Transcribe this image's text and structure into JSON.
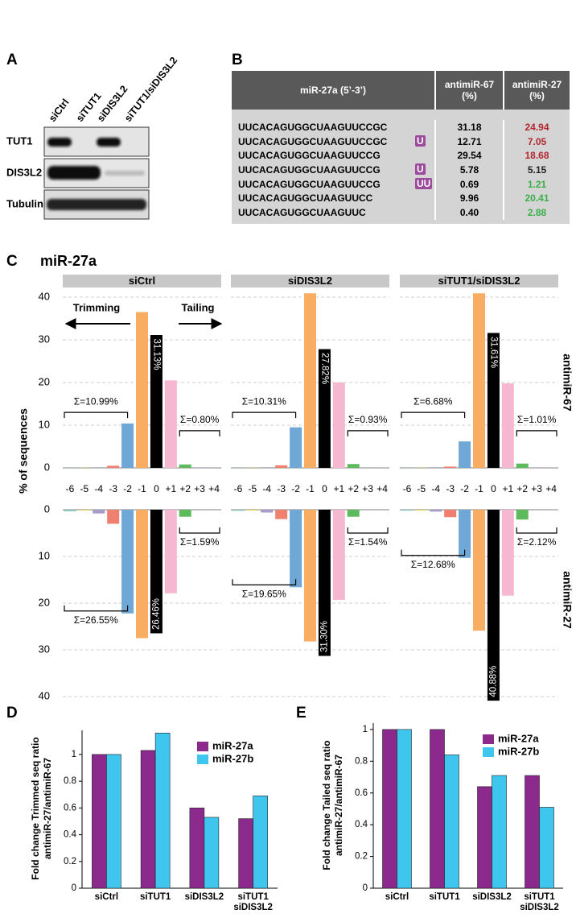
{
  "blot": {
    "label": "A",
    "lanes": [
      "siCtrl",
      "siTUT1",
      "siDIS3L2",
      "siTUT1/siDIS3L2"
    ],
    "rows": [
      "TUT1",
      "DIS3L2",
      "Tubulin"
    ]
  },
  "table": {
    "label": "B",
    "header": [
      "miR-27a (5’-3’)",
      "antimiR-67\n(%)",
      "antimiR-27\n(%)"
    ],
    "rows": [
      {
        "sequence": "UUCACAGUGGCUAAGUUCCGC",
        "values": [
          "31.18",
          "24.94"
        ],
        "color": "#b3262e"
      },
      {
        "sequence": "UUCACAGUGGCUAAGUUCCGC",
        "tail": "U",
        "values": [
          "12.71",
          "7.05"
        ],
        "color": "#b3262e"
      },
      {
        "sequence": "UUCACAGUGGCUAAGUUCCG",
        "values": [
          "29.54",
          "18.68"
        ],
        "color": "#b3262e"
      },
      {
        "sequence": "UUCACAGUGGCUAAGUUCCG",
        "tail": "U",
        "values": [
          "5.78",
          "5.15"
        ],
        "color": "#222222"
      },
      {
        "sequence": "UUCACAGUGGCUAAGUUCCG",
        "tail": "UU",
        "values": [
          "0.69",
          "1.21"
        ],
        "color": "#3aae48"
      },
      {
        "sequence": "UUCACAGUGGCUAAGUUCC",
        "values": [
          "9.96",
          "20.41"
        ],
        "color": "#3aae48"
      },
      {
        "sequence": "UUCACAGUGGCUAAGUUC",
        "values": [
          "0.40",
          "2.88"
        ],
        "color": "#3aae48"
      }
    ]
  },
  "chart_data": [
    {
      "type": "mirrored-bar",
      "label": "C",
      "title": "miR-27a",
      "ylabel": "% of sequences",
      "annotations": [
        "Trimming",
        "Tailing"
      ],
      "categories": [
        "-6",
        "-5",
        "-4",
        "-3",
        "-2",
        "-1",
        "0",
        "+1",
        "+2",
        "+3",
        "+4"
      ],
      "colors": [
        "#8fc9c4",
        "#e8d96a",
        "#a89cc8",
        "#ef7f6f",
        "#6fa8d6",
        "#f8ad62",
        "#000000",
        "#f6b8d0",
        "#5dbb5d",
        "#c6a2d3",
        "#b9b9b9"
      ],
      "series": [
        {
          "name": "antimiR-67"
        },
        {
          "name": "antimiR-27"
        }
      ],
      "ylim": [
        0,
        40
      ],
      "yticks": [
        0,
        10,
        20,
        30,
        40
      ],
      "grid": true,
      "facets": [
        {
          "name": "siCtrl",
          "values": [
            [
              0.05,
              0.05,
              0.05,
              0.5,
              10.4,
              36.5,
              31.13,
              20.5,
              0.8,
              0.05,
              0.05
            ],
            [
              0.35,
              0.2,
              0.8,
              3.0,
              22.2,
              27.5,
              26.46,
              17.9,
              1.5,
              0.05,
              0.05
            ]
          ],
          "value_labels": [
            [
              null,
              null,
              null,
              null,
              null,
              null,
              "31.13%",
              null,
              null,
              null,
              null
            ],
            [
              null,
              null,
              null,
              null,
              null,
              null,
              "26.46%",
              null,
              null,
              null,
              null
            ]
          ],
          "sums": [
            [
              "Σ=10.99%",
              "Σ=0.80%"
            ],
            [
              "Σ=26.55%",
              "Σ=1.59%"
            ]
          ]
        },
        {
          "name": "siDIS3L2",
          "values": [
            [
              0.05,
              0.05,
              0.1,
              0.6,
              9.5,
              40.9,
              27.82,
              20.0,
              0.9,
              0.05,
              0.05
            ],
            [
              0.25,
              0.2,
              0.6,
              2.0,
              16.6,
              28.2,
              31.3,
              19.3,
              1.5,
              0.05,
              0.05
            ]
          ],
          "value_labels": [
            [
              null,
              null,
              null,
              null,
              null,
              null,
              "27.82%",
              null,
              null,
              null,
              null
            ],
            [
              null,
              null,
              null,
              null,
              null,
              null,
              "31.30%",
              null,
              null,
              null,
              null
            ]
          ],
          "sums": [
            [
              "Σ=10.31%",
              "Σ=0.93%"
            ],
            [
              "Σ=19.65%",
              "Σ=1.54%"
            ]
          ]
        },
        {
          "name": "siTUT1/siDIS3L2",
          "values": [
            [
              0.05,
              0.05,
              0.1,
              0.3,
              6.2,
              40.9,
              31.61,
              19.8,
              1.0,
              0.05,
              0.05
            ],
            [
              0.2,
              0.2,
              0.4,
              1.6,
              10.3,
              25.9,
              40.88,
              18.4,
              2.1,
              0.05,
              0.05
            ]
          ],
          "value_labels": [
            [
              null,
              null,
              null,
              null,
              null,
              null,
              "31.61%",
              null,
              null,
              null,
              null
            ],
            [
              null,
              null,
              null,
              null,
              null,
              null,
              "40.88%",
              null,
              null,
              null,
              null
            ]
          ],
          "sums": [
            [
              "Σ=6.68%",
              "Σ=1.01%"
            ],
            [
              "Σ=12.68%",
              "Σ=2.12%"
            ]
          ]
        }
      ]
    },
    {
      "type": "bar",
      "label": "D",
      "ylabel": "Fold change Trimmed seq ratio\nantimiR-27/antimiR-67",
      "categories": [
        "siCtrl",
        "siTUT1",
        "siDIS3L2",
        "siTUT1\nsiDIS3L2"
      ],
      "series": [
        {
          "name": "miR-27a",
          "color": "#8b2a8c",
          "values": [
            1.0,
            1.03,
            0.6,
            0.52
          ]
        },
        {
          "name": "miR-27b",
          "color": "#3ec6ef",
          "values": [
            1.0,
            1.16,
            0.53,
            0.69
          ]
        }
      ],
      "ylim": [
        0,
        1.18
      ],
      "yticks": [
        0,
        0.2,
        0.4,
        0.6,
        0.8,
        1
      ],
      "legend": "upper-right"
    },
    {
      "type": "bar",
      "label": "E",
      "ylabel": "Fold change Tailed seq ratio\nantimiR-27/antimiR-67",
      "categories": [
        "siCtrl",
        "siTUT1",
        "siDIS3L2",
        "siTUT1\nsiDIS3L2"
      ],
      "series": [
        {
          "name": "miR-27a",
          "color": "#8b2a8c",
          "values": [
            1.0,
            1.0,
            0.64,
            0.71
          ]
        },
        {
          "name": "miR-27b",
          "color": "#3ec6ef",
          "values": [
            1.0,
            0.84,
            0.71,
            0.51
          ]
        }
      ],
      "ylim": [
        0,
        1.04
      ],
      "yticks": [
        0,
        0.2,
        0.4,
        0.6,
        0.8,
        1
      ],
      "legend": "upper-right"
    }
  ]
}
